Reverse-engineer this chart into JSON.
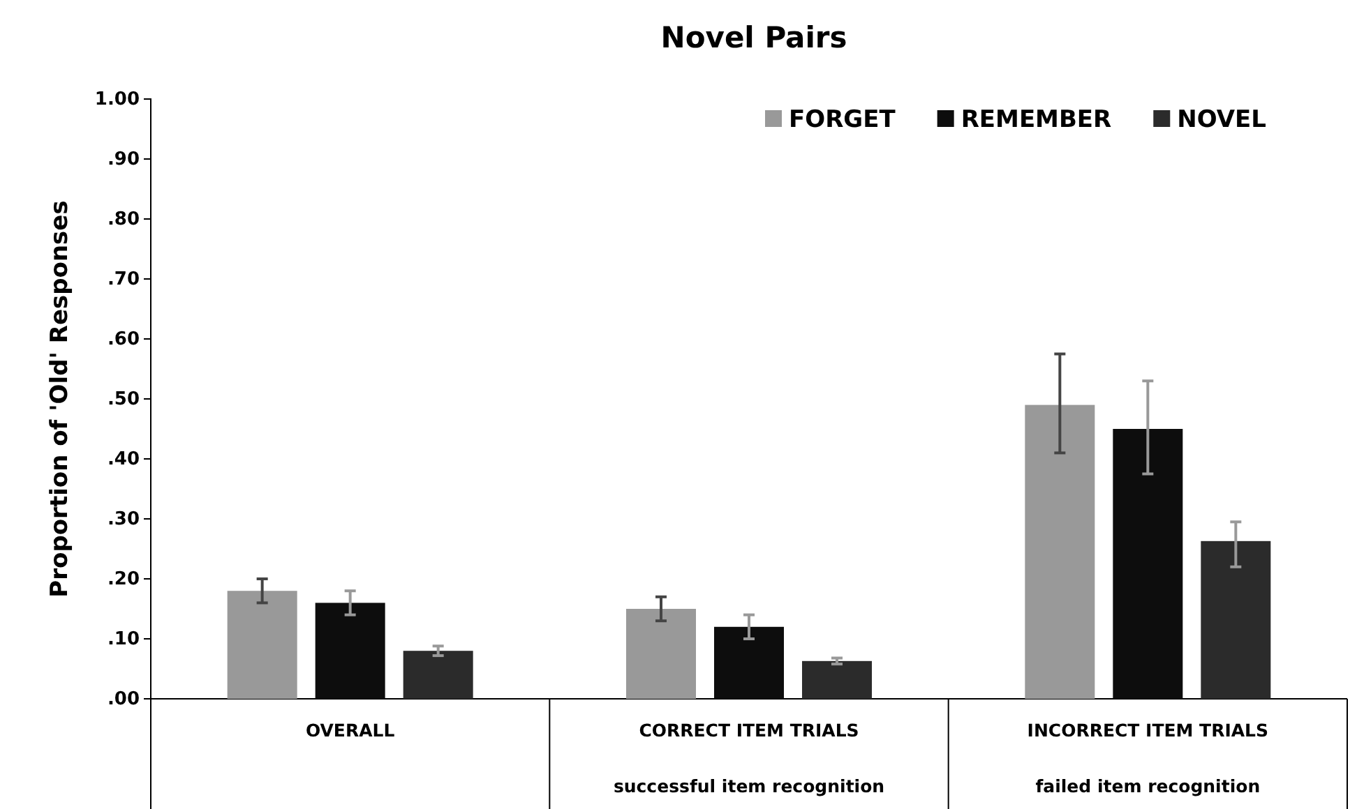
{
  "chart_data": {
    "type": "bar",
    "title": "Novel Pairs",
    "ylabel": "Proportion of 'Old' Responses",
    "categories": [
      "OVERALL",
      "CORRECT ITEM TRIALS\nsuccessful item recognition",
      "INCORRECT ITEM TRIALS\nfailed item recognition"
    ],
    "series": [
      {
        "name": "FORGET",
        "color": "#999999",
        "values": [
          0.18,
          0.15,
          0.49
        ],
        "errors": [
          0.02,
          0.02,
          [
            0.41,
            0.575
          ]
        ]
      },
      {
        "name": "REMEMBER",
        "color": "#0d0d0d",
        "values": [
          0.16,
          0.12,
          0.45
        ],
        "errors": [
          0.02,
          0.02,
          [
            0.375,
            0.53
          ]
        ]
      },
      {
        "name": "NOVEL",
        "color": "#2b2b2b",
        "values": [
          0.08,
          0.063,
          0.263
        ],
        "errors": [
          0.008,
          0.005,
          [
            0.22,
            0.295
          ]
        ]
      }
    ],
    "ylim": [
      0,
      1
    ],
    "yticks": [
      {
        "value": 0,
        "label": ".00"
      },
      {
        "value": 0.1,
        "label": ".10"
      },
      {
        "value": 0.2,
        "label": ".20"
      },
      {
        "value": 0.3,
        "label": ".30"
      },
      {
        "value": 0.4,
        "label": ".40"
      },
      {
        "value": 0.5,
        "label": ".50"
      },
      {
        "value": 0.6,
        "label": ".60"
      },
      {
        "value": 0.7,
        "label": ".70"
      },
      {
        "value": 0.8,
        "label": ".80"
      },
      {
        "value": 0.9,
        "label": ".90"
      },
      {
        "value": 1,
        "label": "1.00"
      }
    ],
    "legend": "top right",
    "grid": false
  }
}
